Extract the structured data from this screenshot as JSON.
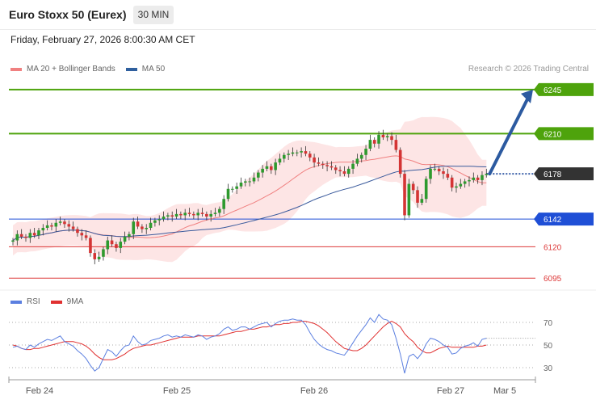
{
  "header": {
    "title": "Euro Stoxx 50 (Eurex)",
    "timeframe": "30 MIN",
    "datetime": "Friday, February 27, 2026 8:00:30 AM CET",
    "credit": "Research © 2026 Trading Central"
  },
  "legend": {
    "main": [
      {
        "label": "MA 20 + Bollinger Bands",
        "color": "#f08080"
      },
      {
        "label": "MA 50",
        "color": "#2f5f9e"
      }
    ],
    "rsi": [
      {
        "label": "RSI",
        "color": "#5b7fe0"
      },
      {
        "label": "9MA",
        "color": "#e03030"
      }
    ]
  },
  "chart_data": [
    {
      "type": "candlestick",
      "x_labels": [
        "Feb 24",
        "Feb 25",
        "Feb 26",
        "Feb 27",
        "Mar 5"
      ],
      "ylim": [
        6090,
        6252
      ],
      "levels": [
        {
          "value": 6245,
          "label": "6245",
          "color": "#4ea30c",
          "style": "resistance"
        },
        {
          "value": 6210,
          "label": "6210",
          "color": "#4ea30c",
          "style": "resistance"
        },
        {
          "value": 6178,
          "label": "6178",
          "color": "#333333",
          "style": "last-price"
        },
        {
          "value": 6142,
          "label": "6142",
          "color": "#1f4fd6",
          "style": "pivot"
        },
        {
          "value": 6120,
          "label": "6120",
          "color": "#dd3a3a",
          "style": "support"
        },
        {
          "value": 6095,
          "label": "6095",
          "color": "#dd3a3a",
          "style": "support"
        }
      ],
      "forecast_arrow": {
        "from": 6178,
        "to": 6245
      },
      "close": [
        6125,
        6130,
        6128,
        6127,
        6131,
        6129,
        6133,
        6135,
        6137,
        6136,
        6139,
        6140,
        6138,
        6136,
        6134,
        6131,
        6129,
        6127,
        6115,
        6110,
        6112,
        6118,
        6125,
        6122,
        6119,
        6124,
        6128,
        6130,
        6140,
        6136,
        6134,
        6135,
        6139,
        6141,
        6142,
        6144,
        6145,
        6144,
        6146,
        6145,
        6147,
        6146,
        6145,
        6147,
        6146,
        6144,
        6146,
        6147,
        6150,
        6158,
        6166,
        6166,
        6168,
        6171,
        6172,
        6172,
        6175,
        6179,
        6182,
        6184,
        6181,
        6187,
        6190,
        6193,
        6194,
        6195,
        6195,
        6196,
        6194,
        6191,
        6187,
        6186,
        6185,
        6184,
        6183,
        6181,
        6180,
        6178,
        6182,
        6186,
        6190,
        6193,
        6198,
        6205,
        6202,
        6209,
        6207,
        6208,
        6205,
        6197,
        6178,
        6145,
        6170,
        6165,
        6155,
        6158,
        6174,
        6182,
        6182,
        6180,
        6178,
        6175,
        6167,
        6168,
        6170,
        6172,
        6173,
        6175,
        6173,
        6177,
        6178
      ],
      "rsi": [
        48,
        49,
        47,
        46,
        50,
        48,
        51,
        53,
        55,
        54,
        56,
        58,
        53,
        51,
        49,
        45,
        42,
        38,
        32,
        27,
        30,
        38,
        46,
        44,
        40,
        45,
        49,
        50,
        58,
        53,
        50,
        51,
        54,
        55,
        56,
        58,
        59,
        57,
        58,
        57,
        59,
        58,
        57,
        59,
        58,
        55,
        57,
        58,
        60,
        64,
        66,
        63,
        64,
        66,
        66,
        64,
        66,
        68,
        69,
        70,
        66,
        69,
        71,
        72,
        72,
        73,
        72,
        72,
        68,
        61,
        55,
        51,
        48,
        46,
        45,
        43,
        42,
        41,
        46,
        52,
        58,
        63,
        68,
        74,
        70,
        77,
        73,
        72,
        68,
        56,
        42,
        25,
        40,
        42,
        38,
        43,
        51,
        56,
        55,
        53,
        50,
        48,
        42,
        43,
        47,
        49,
        50,
        52,
        49,
        55,
        56
      ],
      "rsi_ma": [
        50,
        49,
        47,
        46,
        46,
        47,
        47,
        48,
        49,
        50,
        51,
        52,
        53,
        53,
        53,
        52,
        51,
        49,
        46,
        42,
        39,
        37,
        37,
        37,
        38,
        40,
        42,
        45,
        47,
        48,
        49,
        50,
        50,
        51,
        52,
        53,
        54,
        55,
        56,
        57,
        57,
        57,
        57,
        58,
        58,
        58,
        58,
        58,
        58,
        59,
        60,
        61,
        62,
        62,
        63,
        64,
        64,
        65,
        66,
        66,
        67,
        68,
        68,
        69,
        69,
        70,
        70,
        71,
        71,
        70,
        69,
        67,
        64,
        61,
        57,
        53,
        50,
        47,
        46,
        45,
        45,
        47,
        50,
        54,
        58,
        62,
        66,
        69,
        71,
        69,
        66,
        60,
        56,
        53,
        48,
        45,
        43,
        43,
        45,
        47,
        48,
        49,
        48,
        48,
        48,
        48,
        48,
        48,
        49,
        49,
        50
      ],
      "rsi_levels": [
        30,
        50,
        70
      ]
    }
  ]
}
